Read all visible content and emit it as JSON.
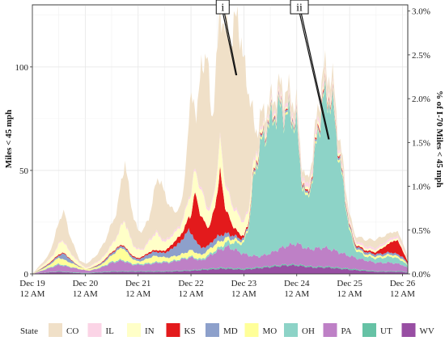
{
  "chart_data": {
    "type": "area",
    "ylabel_left": "Miles < 45 mph",
    "ylabel_right": "% of I-70 Miles < 45 mph",
    "y_left_ticks": [
      0,
      50,
      100
    ],
    "y_left_range": [
      0,
      130
    ],
    "y_right_ticks": [
      "0.0%",
      "0.5%",
      "1.0%",
      "1.5%",
      "2.0%",
      "2.5%",
      "3.0%"
    ],
    "y_right_values": [
      0.0,
      0.5,
      1.0,
      1.5,
      2.0,
      2.5,
      3.0
    ],
    "x_range_days": [
      19,
      26.1
    ],
    "x_ticks": [
      {
        "day": 19,
        "line1": "Dec 19",
        "line2": "12 AM"
      },
      {
        "day": 20,
        "line1": "Dec 20",
        "line2": "12 AM"
      },
      {
        "day": 21,
        "line1": "Dec 21",
        "line2": "12 AM"
      },
      {
        "day": 22,
        "line1": "Dec 22",
        "line2": "12 AM"
      },
      {
        "day": 23,
        "line1": "Dec 23",
        "line2": "12 AM"
      },
      {
        "day": 24,
        "line1": "Dec 24",
        "line2": "12 AM"
      },
      {
        "day": 25,
        "line1": "Dec 25",
        "line2": "12 AM"
      },
      {
        "day": 26,
        "line1": "Dec 26",
        "line2": "12 AM"
      }
    ],
    "legend_title": "State",
    "legend_position": "bottom",
    "grid": true,
    "annotations": [
      {
        "label": "i",
        "x": 22.6,
        "y": 129,
        "tip_x": 22.85,
        "tip_y": 96
      },
      {
        "label": "ii",
        "x": 24.05,
        "y": 129,
        "tip_x": 24.6,
        "tip_y": 65
      }
    ],
    "stack_order_bottom_to_top": [
      "WV",
      "UT",
      "PA",
      "OH",
      "MO",
      "MD",
      "KS",
      "IN",
      "IL",
      "CO"
    ],
    "series": [
      {
        "name": "CO",
        "color": "#f0e0c8",
        "points": [
          [
            19,
            0
          ],
          [
            19.3,
            2
          ],
          [
            19.5,
            10
          ],
          [
            19.6,
            14
          ],
          [
            19.7,
            8
          ],
          [
            19.9,
            1
          ],
          [
            20.2,
            3
          ],
          [
            20.4,
            7
          ],
          [
            20.6,
            12
          ],
          [
            20.75,
            28
          ],
          [
            20.85,
            18
          ],
          [
            21.0,
            8
          ],
          [
            21.2,
            10
          ],
          [
            21.4,
            28
          ],
          [
            21.55,
            18
          ],
          [
            21.7,
            8
          ],
          [
            21.85,
            10
          ],
          [
            22.0,
            45
          ],
          [
            22.1,
            25
          ],
          [
            22.2,
            60
          ],
          [
            22.3,
            72
          ],
          [
            22.4,
            38
          ],
          [
            22.5,
            55
          ],
          [
            22.65,
            72
          ],
          [
            22.8,
            82
          ],
          [
            22.9,
            95
          ],
          [
            23.0,
            72
          ],
          [
            23.1,
            55
          ],
          [
            23.2,
            12
          ],
          [
            23.3,
            8
          ],
          [
            23.5,
            4
          ],
          [
            23.8,
            6
          ],
          [
            24.0,
            4
          ],
          [
            24.2,
            3
          ],
          [
            24.5,
            6
          ],
          [
            24.7,
            6
          ],
          [
            24.9,
            4
          ],
          [
            25.1,
            2
          ],
          [
            25.3,
            3
          ],
          [
            25.5,
            4
          ],
          [
            25.7,
            3
          ],
          [
            25.9,
            2
          ],
          [
            26.0,
            2
          ],
          [
            26.1,
            1
          ]
        ]
      },
      {
        "name": "IL",
        "color": "#fbd4e6",
        "points": [
          [
            19,
            0
          ],
          [
            19.5,
            0.5
          ],
          [
            20,
            0.3
          ],
          [
            20.5,
            0.5
          ],
          [
            21,
            0.5
          ],
          [
            21.5,
            1
          ],
          [
            22,
            1
          ],
          [
            22.5,
            1.5
          ],
          [
            23,
            1
          ],
          [
            23.5,
            1.5
          ],
          [
            24,
            2
          ],
          [
            24.5,
            2
          ],
          [
            25,
            1
          ],
          [
            25.5,
            1
          ],
          [
            26,
            1
          ],
          [
            26.1,
            0.5
          ]
        ]
      },
      {
        "name": "IN",
        "color": "#ffffc8",
        "points": [
          [
            19,
            0
          ],
          [
            19.4,
            2
          ],
          [
            19.55,
            6
          ],
          [
            19.7,
            3
          ],
          [
            20,
            0.5
          ],
          [
            20.4,
            2
          ],
          [
            20.6,
            5
          ],
          [
            20.75,
            12
          ],
          [
            20.9,
            5
          ],
          [
            21.1,
            3
          ],
          [
            21.35,
            8
          ],
          [
            21.5,
            4
          ],
          [
            21.8,
            4
          ],
          [
            22.0,
            10
          ],
          [
            22.2,
            12
          ],
          [
            22.4,
            6
          ],
          [
            22.55,
            14
          ],
          [
            22.7,
            10
          ],
          [
            22.9,
            8
          ],
          [
            23.1,
            5
          ],
          [
            23.3,
            2
          ],
          [
            23.6,
            1
          ],
          [
            24,
            1
          ],
          [
            24.5,
            2
          ],
          [
            25,
            1
          ],
          [
            25.5,
            1
          ],
          [
            26,
            1
          ],
          [
            26.1,
            0.5
          ]
        ]
      },
      {
        "name": "KS",
        "color": "#e31a1c",
        "points": [
          [
            19,
            0
          ],
          [
            19.5,
            0.5
          ],
          [
            20,
            0
          ],
          [
            20.5,
            0.5
          ],
          [
            21,
            0.5
          ],
          [
            21.5,
            1
          ],
          [
            21.9,
            4
          ],
          [
            22.0,
            8
          ],
          [
            22.05,
            18
          ],
          [
            22.1,
            22
          ],
          [
            22.2,
            14
          ],
          [
            22.35,
            8
          ],
          [
            22.45,
            15
          ],
          [
            22.55,
            30
          ],
          [
            22.65,
            12
          ],
          [
            22.8,
            4
          ],
          [
            23.0,
            1
          ],
          [
            23.5,
            0.5
          ],
          [
            24,
            0.5
          ],
          [
            24.5,
            1
          ],
          [
            25,
            0.5
          ],
          [
            25.5,
            1
          ],
          [
            25.8,
            5
          ],
          [
            25.9,
            7
          ],
          [
            26.0,
            3
          ],
          [
            26.1,
            1
          ]
        ]
      },
      {
        "name": "MD",
        "color": "#8da0cb",
        "points": [
          [
            19,
            0
          ],
          [
            19.5,
            1
          ],
          [
            19.6,
            3
          ],
          [
            19.8,
            0.5
          ],
          [
            20,
            0
          ],
          [
            20.5,
            1
          ],
          [
            21,
            1
          ],
          [
            21.2,
            2
          ],
          [
            21.5,
            2
          ],
          [
            21.8,
            6
          ],
          [
            21.95,
            10
          ],
          [
            22.1,
            5
          ],
          [
            22.3,
            2
          ],
          [
            22.5,
            3
          ],
          [
            22.7,
            2
          ],
          [
            23,
            1
          ],
          [
            23.5,
            1
          ],
          [
            24,
            1
          ],
          [
            24.5,
            1
          ],
          [
            25,
            1
          ],
          [
            25.5,
            1
          ],
          [
            26,
            1
          ],
          [
            26.1,
            0.5
          ]
        ]
      },
      {
        "name": "MO",
        "color": "#ffff99",
        "points": [
          [
            19,
            0
          ],
          [
            19.3,
            1
          ],
          [
            19.5,
            3
          ],
          [
            19.7,
            2
          ],
          [
            20,
            0.5
          ],
          [
            20.3,
            1
          ],
          [
            20.5,
            3
          ],
          [
            20.7,
            6
          ],
          [
            20.85,
            3
          ],
          [
            21,
            1
          ],
          [
            21.3,
            3
          ],
          [
            21.5,
            2
          ],
          [
            21.8,
            2
          ],
          [
            22.0,
            3
          ],
          [
            22.2,
            2
          ],
          [
            22.5,
            3
          ],
          [
            22.7,
            2
          ],
          [
            23,
            1
          ],
          [
            23.5,
            1
          ],
          [
            24,
            1
          ],
          [
            24.5,
            1
          ],
          [
            25,
            1
          ],
          [
            25.5,
            1
          ],
          [
            26,
            1
          ],
          [
            26.1,
            0.5
          ]
        ]
      },
      {
        "name": "OH",
        "color": "#8dd3c7",
        "points": [
          [
            19,
            0
          ],
          [
            19.5,
            0.5
          ],
          [
            20,
            0
          ],
          [
            20.5,
            0.5
          ],
          [
            21,
            0.5
          ],
          [
            21.5,
            0.5
          ],
          [
            22,
            0.5
          ],
          [
            22.5,
            1
          ],
          [
            22.8,
            3
          ],
          [
            23.0,
            5
          ],
          [
            23.1,
            15
          ],
          [
            23.2,
            40
          ],
          [
            23.3,
            50
          ],
          [
            23.4,
            58
          ],
          [
            23.5,
            62
          ],
          [
            23.6,
            65
          ],
          [
            23.7,
            66
          ],
          [
            23.8,
            62
          ],
          [
            23.9,
            60
          ],
          [
            24.0,
            56
          ],
          [
            24.05,
            40
          ],
          [
            24.1,
            30
          ],
          [
            24.2,
            22
          ],
          [
            24.3,
            35
          ],
          [
            24.4,
            55
          ],
          [
            24.5,
            70
          ],
          [
            24.6,
            72
          ],
          [
            24.7,
            65
          ],
          [
            24.8,
            45
          ],
          [
            24.9,
            28
          ],
          [
            25.0,
            12
          ],
          [
            25.1,
            4
          ],
          [
            25.3,
            2
          ],
          [
            25.5,
            2
          ],
          [
            25.8,
            3
          ],
          [
            26.0,
            2
          ],
          [
            26.1,
            1
          ]
        ]
      },
      {
        "name": "PA",
        "color": "#be80c6",
        "points": [
          [
            19,
            0
          ],
          [
            19.2,
            1
          ],
          [
            19.5,
            3
          ],
          [
            19.8,
            2
          ],
          [
            20.1,
            1
          ],
          [
            20.3,
            2
          ],
          [
            20.5,
            4
          ],
          [
            20.7,
            5
          ],
          [
            20.9,
            3
          ],
          [
            21.1,
            3
          ],
          [
            21.4,
            4
          ],
          [
            21.6,
            4
          ],
          [
            21.8,
            5
          ],
          [
            22.0,
            6
          ],
          [
            22.2,
            4
          ],
          [
            22.5,
            8
          ],
          [
            22.7,
            10
          ],
          [
            22.9,
            8
          ],
          [
            23.1,
            6
          ],
          [
            23.3,
            5
          ],
          [
            23.5,
            6
          ],
          [
            23.7,
            8
          ],
          [
            24.0,
            10
          ],
          [
            24.2,
            8
          ],
          [
            24.5,
            9
          ],
          [
            24.7,
            8
          ],
          [
            25.0,
            6
          ],
          [
            25.2,
            5
          ],
          [
            25.5,
            4
          ],
          [
            25.8,
            4
          ],
          [
            26.0,
            3
          ],
          [
            26.1,
            2
          ]
        ]
      },
      {
        "name": "UT",
        "color": "#66c2a5",
        "points": [
          [
            19,
            0
          ],
          [
            19.5,
            0.3
          ],
          [
            20,
            0.2
          ],
          [
            20.5,
            0.3
          ],
          [
            21,
            0.3
          ],
          [
            21.5,
            0.3
          ],
          [
            22,
            0.3
          ],
          [
            22.5,
            0.5
          ],
          [
            23,
            0.5
          ],
          [
            23.5,
            0.5
          ],
          [
            24,
            0.5
          ],
          [
            24.5,
            0.5
          ],
          [
            25,
            0.5
          ],
          [
            25.5,
            0.3
          ],
          [
            26,
            0.3
          ],
          [
            26.1,
            0.2
          ]
        ]
      },
      {
        "name": "WV",
        "color": "#984ea3",
        "points": [
          [
            19,
            0
          ],
          [
            19.2,
            0.5
          ],
          [
            19.5,
            1
          ],
          [
            19.8,
            0.5
          ],
          [
            20,
            0.2
          ],
          [
            20.5,
            1
          ],
          [
            21,
            1
          ],
          [
            21.5,
            1
          ],
          [
            22,
            1.5
          ],
          [
            22.3,
            2
          ],
          [
            22.6,
            2.5
          ],
          [
            23,
            2
          ],
          [
            23.4,
            3
          ],
          [
            23.8,
            4
          ],
          [
            24.0,
            4
          ],
          [
            24.3,
            3
          ],
          [
            24.6,
            3
          ],
          [
            25,
            2
          ],
          [
            25.5,
            1
          ],
          [
            26,
            1
          ],
          [
            26.1,
            0.5
          ]
        ]
      }
    ]
  }
}
